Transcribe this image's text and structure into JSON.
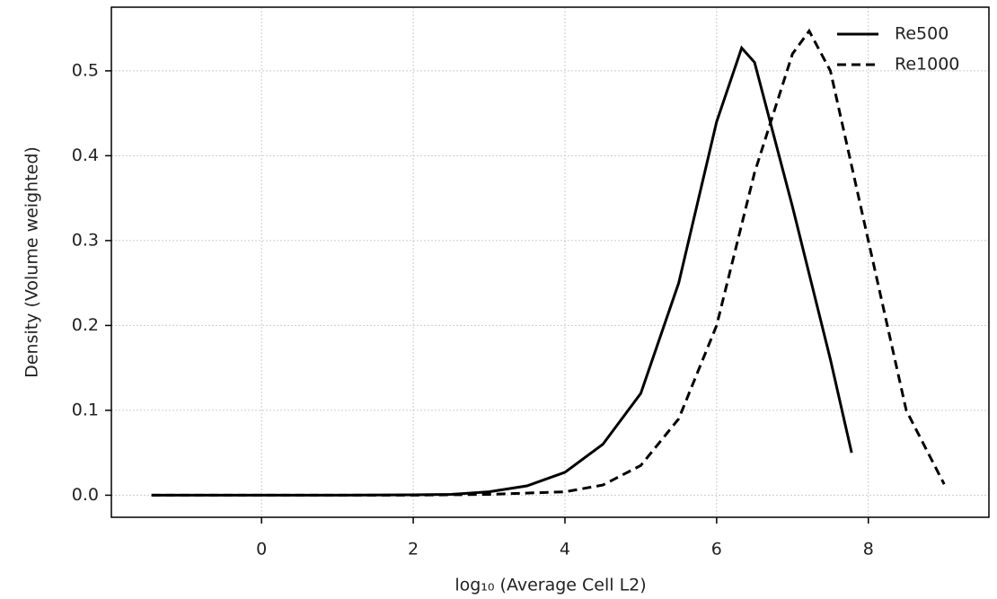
{
  "chart_data": {
    "type": "line",
    "xlabel": "log₁₀ (Average Cell L2)",
    "ylabel": "Density (Volume weighted)",
    "xlim": [
      -1.98,
      9.59
    ],
    "ylim": [
      -0.026,
      0.575
    ],
    "xticks": [
      0,
      2,
      4,
      6,
      8
    ],
    "yticks": [
      {
        "value": 0,
        "label": "0.0"
      },
      0.1,
      0.2,
      0.3,
      0.4,
      0.5
    ],
    "grid": true,
    "legend": "upper right",
    "series": [
      {
        "name": "Re500",
        "color": "#000000",
        "dash": "solid",
        "x": [
          -1.45,
          0,
          1,
          2,
          2.5,
          3,
          3.5,
          4,
          4.5,
          5,
          5.5,
          6,
          6.33,
          6.5,
          7,
          7.5,
          7.78
        ],
        "values": [
          0,
          0,
          0,
          0.0005,
          0.001,
          0.004,
          0.011,
          0.027,
          0.06,
          0.12,
          0.25,
          0.44,
          0.527,
          0.51,
          0.34,
          0.16,
          0.05
        ]
      },
      {
        "name": "Re1000",
        "color": "#000000",
        "dash": "dashed",
        "x": [
          -1.45,
          0,
          2,
          3,
          4,
          4.5,
          5,
          5.5,
          6,
          6.5,
          7,
          7.22,
          7.5,
          8,
          8.5,
          9
        ],
        "values": [
          0,
          0,
          0,
          0.001,
          0.004,
          0.012,
          0.035,
          0.09,
          0.2,
          0.38,
          0.52,
          0.547,
          0.5,
          0.3,
          0.1,
          0.013
        ]
      }
    ]
  }
}
